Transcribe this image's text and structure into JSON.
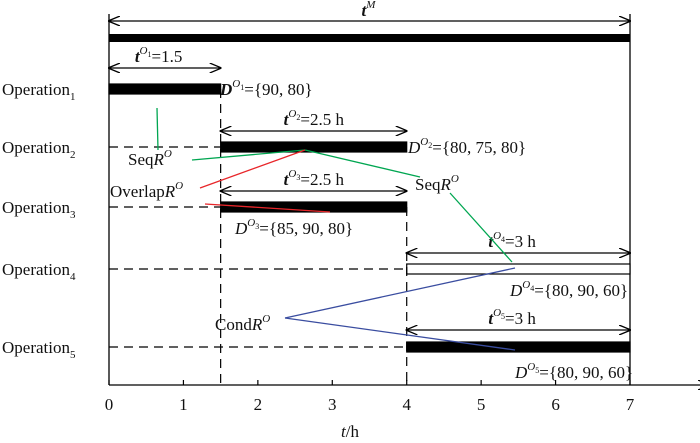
{
  "axis": {
    "label_italic": "t",
    "label_rest": "/h",
    "xlim": [
      0,
      7.9
    ],
    "xticks": [
      0,
      1,
      2,
      3,
      4,
      5,
      6,
      7
    ]
  },
  "makespan": {
    "symbol": "t",
    "sup": "M",
    "start": 0,
    "end": 7
  },
  "operations": [
    {
      "name": "Operation",
      "sub": "1",
      "start": 0,
      "end": 1.5,
      "fill": "#000",
      "duration_label": {
        "base": "t",
        "sup": "O",
        "sup_sub": "1",
        "rest": "=1.5"
      },
      "data_label": {
        "base": "D",
        "sup": "O",
        "sup_sub": "1",
        "rest": "={90, 80}",
        "bold": true
      }
    },
    {
      "name": "Operation",
      "sub": "2",
      "start": 1.5,
      "end": 4,
      "fill": "#000",
      "duration_label": {
        "base": "t",
        "sup": "O",
        "sup_sub": "2",
        "rest": "=2.5 h"
      },
      "data_label": {
        "base": "D",
        "sup": "O",
        "sup_sub": "2",
        "rest": "={80, 75, 80}",
        "bold": false
      }
    },
    {
      "name": "Operation",
      "sub": "3",
      "start": 1.5,
      "end": 4,
      "fill": "#000",
      "duration_label": {
        "base": "t",
        "sup": "O",
        "sup_sub": "3",
        "rest": "=2.5 h"
      },
      "data_label": {
        "base": "D",
        "sup": "O",
        "sup_sub": "3",
        "rest": "={85, 90, 80}",
        "bold": false
      }
    },
    {
      "name": "Operation",
      "sub": "4",
      "start": 4,
      "end": 7,
      "fill": "#fff",
      "duration_label": {
        "base": "t",
        "sup": "O",
        "sup_sub": "4",
        "rest": "=3 h"
      },
      "data_label": {
        "base": "D",
        "sup": "O",
        "sup_sub": "4",
        "rest": "={80, 90, 60}",
        "bold": false
      }
    },
    {
      "name": "Operation",
      "sub": "5",
      "start": 4,
      "end": 7,
      "fill": "#000",
      "duration_label": {
        "base": "t",
        "sup": "O",
        "sup_sub": "5",
        "rest": "=3 h"
      },
      "data_label": {
        "base": "D",
        "sup": "O",
        "sup_sub": "5",
        "rest": "={80, 90, 60}",
        "bold": false
      }
    }
  ],
  "relations": [
    {
      "text": "Seq",
      "italic": "R",
      "sup": "O",
      "color": "#00a651"
    },
    {
      "text": "Overlap",
      "italic": "R",
      "sup": "O",
      "color": "#e8262a"
    },
    {
      "text": "Seq",
      "italic": "R",
      "sup": "O",
      "color": "#00a651"
    },
    {
      "text": "Cond",
      "italic": "R",
      "sup": "O",
      "color": "#3a4da0"
    }
  ]
}
